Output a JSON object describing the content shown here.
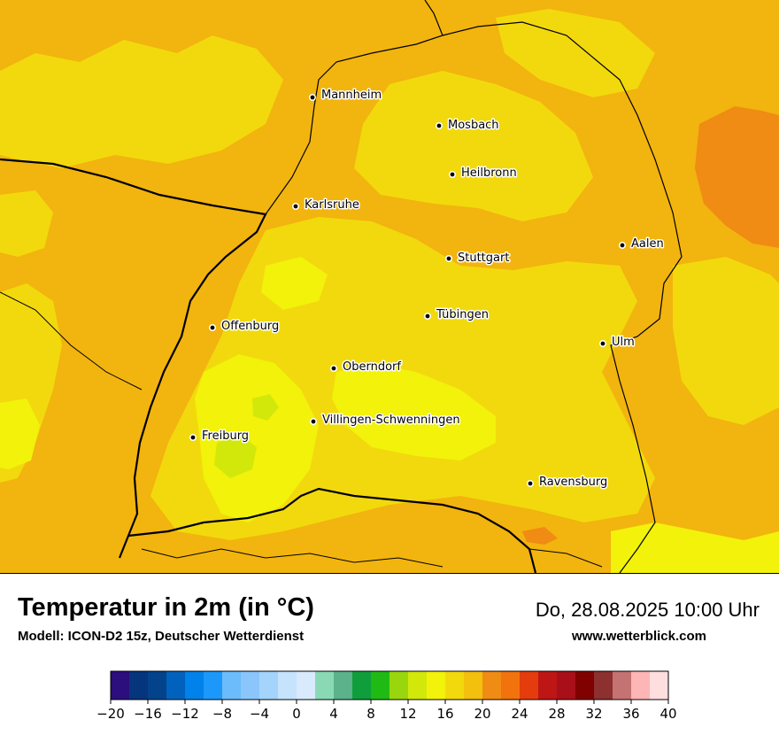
{
  "map": {
    "cities": [
      {
        "name": "Mannheim"
      },
      {
        "name": "Mosbach"
      },
      {
        "name": "Heilbronn"
      },
      {
        "name": "Karlsruhe"
      },
      {
        "name": "Aalen"
      },
      {
        "name": "Stuttgart"
      },
      {
        "name": "Tübingen"
      },
      {
        "name": "Offenburg"
      },
      {
        "name": "Ulm"
      },
      {
        "name": "Oberndorf"
      },
      {
        "name": "Villingen-Schwenningen"
      },
      {
        "name": "Freiburg"
      },
      {
        "name": "Ravensburg"
      }
    ]
  },
  "header": {
    "title": "Temperatur in 2m (in °C)",
    "model": "Modell: ICON-D2 15z, Deutscher Wetterdienst",
    "datetime": "Do, 28.08.2025 10:00 Uhr",
    "website": "www.wetterblick.com"
  },
  "legend": {
    "unit": "°C",
    "min": -20,
    "max": 40,
    "step": 2,
    "tick_labels": [
      "−20",
      "−16",
      "−12",
      "−8",
      "−4",
      "0",
      "4",
      "8",
      "12",
      "16",
      "20",
      "24",
      "28",
      "32",
      "36",
      "40"
    ],
    "colors": [
      "#2c0e7c",
      "#05357d",
      "#03438c",
      "#0062bc",
      "#0082ea",
      "#1c98fa",
      "#6cbcfb",
      "#8ac6fb",
      "#a4d3fc",
      "#c6e3fd",
      "#d9eafd",
      "#8ad9b5",
      "#5cb28a",
      "#109e3c",
      "#20ba15",
      "#9ad60d",
      "#d2e80a",
      "#f2f20a",
      "#f2d90d",
      "#f2c00d",
      "#f08b14",
      "#f2720d",
      "#e43c0c",
      "#bd1615",
      "#a80f19",
      "#810000",
      "#8c3030",
      "#c47372",
      "#fdb5b5",
      "#ffdedf"
    ]
  },
  "colors": {
    "warm_orange": "#f2b40e",
    "pale_yellow": "#f2d90d",
    "bright_yellow": "#f2f20a",
    "yellow_green": "#d2e80a",
    "hot_orange": "#f08b14"
  }
}
